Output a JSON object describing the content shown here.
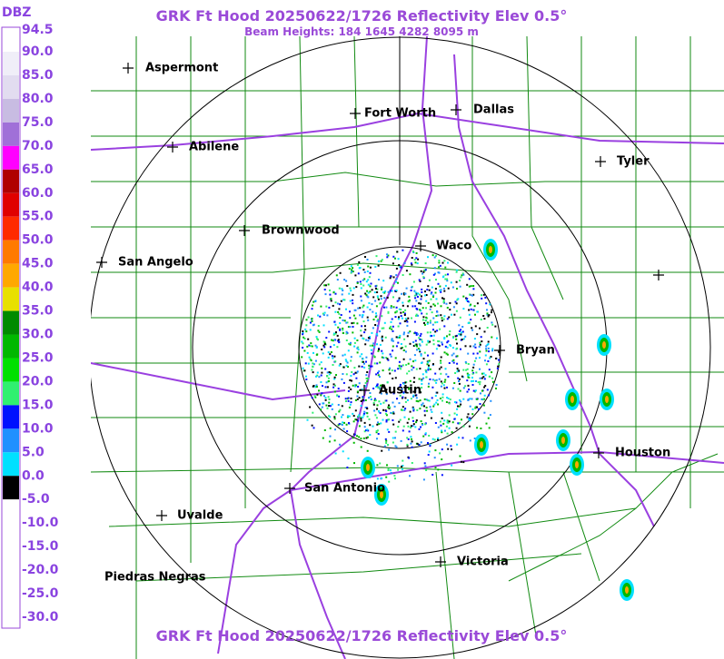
{
  "header": {
    "title": "GRK Ft Hood 20250622/1726 Reflectivity Elev 0.5°",
    "subtitle": "Beam Heights: 184 1645 4282 8095 m",
    "footer_title": "GRK Ft Hood 20250622/1726 Reflectivity Elev 0.5°"
  },
  "legend": {
    "unit": "DBZ",
    "labels": [
      "94.5",
      "90.0",
      "85.0",
      "80.0",
      "75.0",
      "70.0",
      "65.0",
      "60.0",
      "55.0",
      "50.0",
      "45.0",
      "40.0",
      "35.0",
      "30.0",
      "25.0",
      "20.0",
      "15.0",
      "10.0",
      "5.0",
      "0.0",
      "-5.0",
      "-10.0",
      "-15.0",
      "-20.0",
      "-25.0",
      "-30.0"
    ],
    "colors": [
      "#ffffff",
      "#f0eef8",
      "#e2dcf0",
      "#c8bce2",
      "#a070d8",
      "#ff00ff",
      "#b00000",
      "#e00000",
      "#ff2a00",
      "#ff7a00",
      "#ffa800",
      "#e8e000",
      "#008a00",
      "#00b800",
      "#00e000",
      "#30f070",
      "#0010ff",
      "#2090ff",
      "#00e0ff",
      "#000000",
      "#ffffff",
      "#ffffff",
      "#ffffff",
      "#ffffff",
      "#ffffff"
    ]
  },
  "cities": [
    {
      "name": "Aspermont"
    },
    {
      "name": "Fort Worth"
    },
    {
      "name": "Dallas"
    },
    {
      "name": "Abilene"
    },
    {
      "name": "Tyler"
    },
    {
      "name": "Brownwood"
    },
    {
      "name": "Waco"
    },
    {
      "name": "San Angelo"
    },
    {
      "name": "Bryan"
    },
    {
      "name": "Austin"
    },
    {
      "name": "Houston"
    },
    {
      "name": "San Antonio"
    },
    {
      "name": "Uvalde"
    },
    {
      "name": "Victoria"
    },
    {
      "name": "Piedras Negras"
    }
  ]
}
